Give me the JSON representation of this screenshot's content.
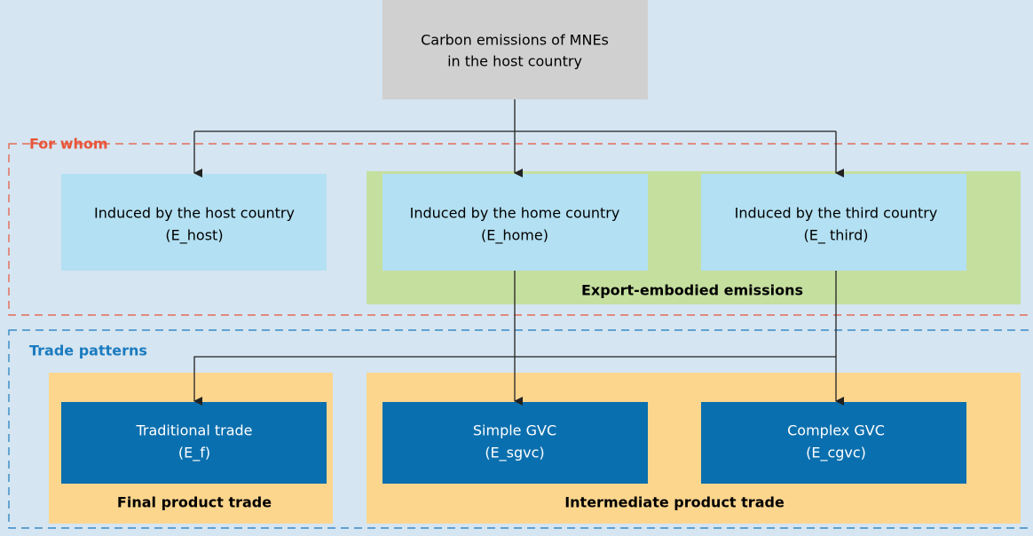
{
  "top_node": {
    "lines": [
      "Carbon emissions of MNEs",
      "in the host country"
    ]
  },
  "for_whom": {
    "label": "For whom",
    "group_label": "Export-embodied emissions",
    "nodes": [
      {
        "lines": [
          "Induced by the host country",
          "(E_host)"
        ]
      },
      {
        "lines": [
          "Induced by the home country",
          "(E_home)"
        ]
      },
      {
        "lines": [
          "Induced by the third country",
          "(E_ third)"
        ]
      }
    ]
  },
  "trade_patterns": {
    "label": "Trade patterns",
    "final_label": "Final product trade",
    "intermediate_label": "Intermediate product trade",
    "nodes": [
      {
        "lines": [
          "Traditional trade",
          "(E_f)"
        ]
      },
      {
        "lines": [
          "Simple GVC",
          "(E_sgvc)"
        ]
      },
      {
        "lines": [
          "Complex GVC",
          "(E_cgvc)"
        ]
      }
    ]
  }
}
